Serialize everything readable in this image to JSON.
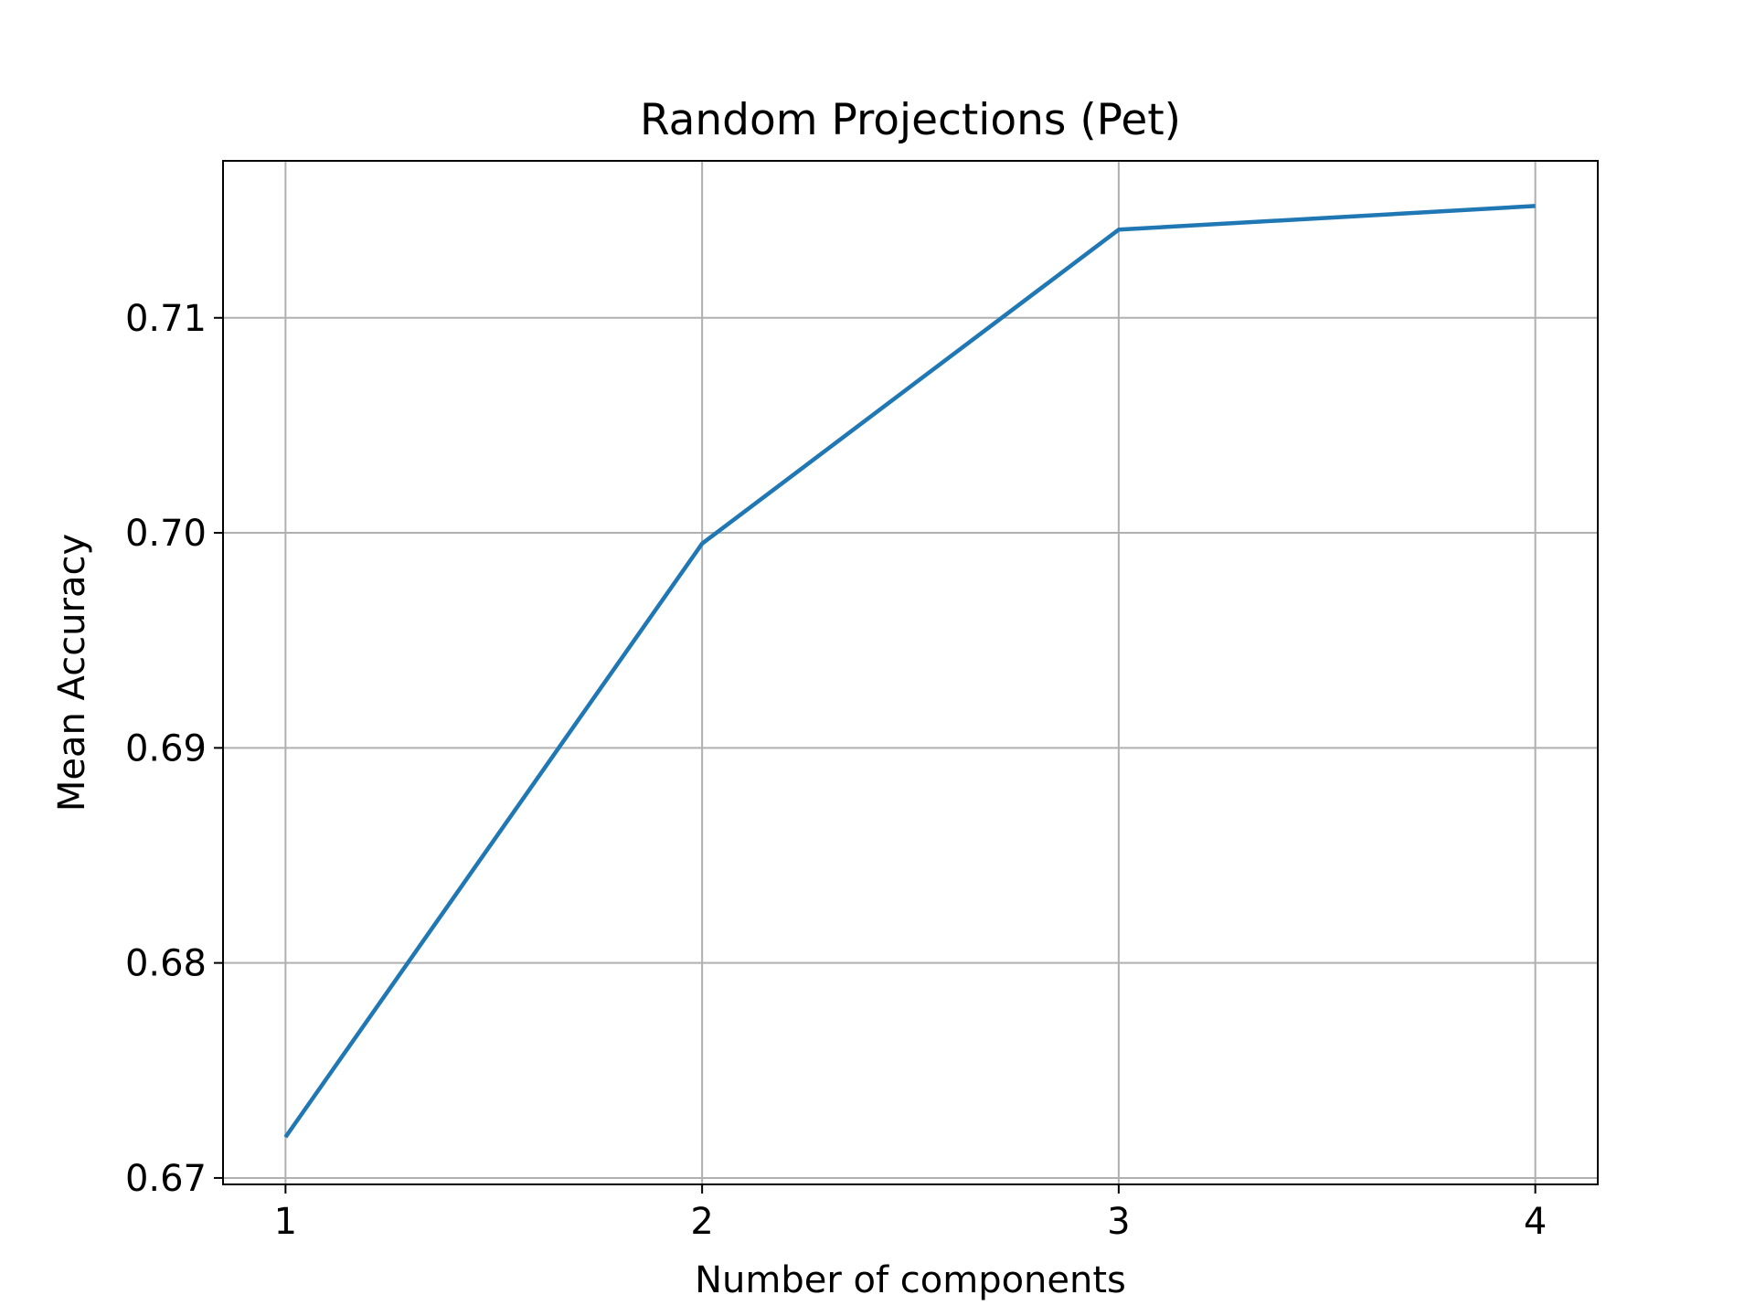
{
  "chart_data": {
    "type": "line",
    "title": "Random Projections (Pet)",
    "xlabel": "Number of components",
    "ylabel": "Mean Accuracy",
    "x": [
      1,
      2,
      3,
      4
    ],
    "series": [
      {
        "values": [
          0.6719,
          0.6995,
          0.7141,
          0.7152
        ]
      }
    ],
    "xticks": [
      1,
      2,
      3,
      4
    ],
    "xtick_labels": [
      "1",
      "2",
      "3",
      "4"
    ],
    "yticks": [
      0.67,
      0.68,
      0.69,
      0.7,
      0.71
    ],
    "ytick_labels": [
      "0.67",
      "0.68",
      "0.69",
      "0.70",
      "0.71"
    ],
    "xlim": [
      0.85,
      4.15
    ],
    "ylim": [
      0.6697,
      0.7173
    ],
    "grid": true,
    "legend": "none",
    "colors": {
      "line": "#1f77b4",
      "grid": "#b0b0b0",
      "axes": "#000000"
    }
  }
}
